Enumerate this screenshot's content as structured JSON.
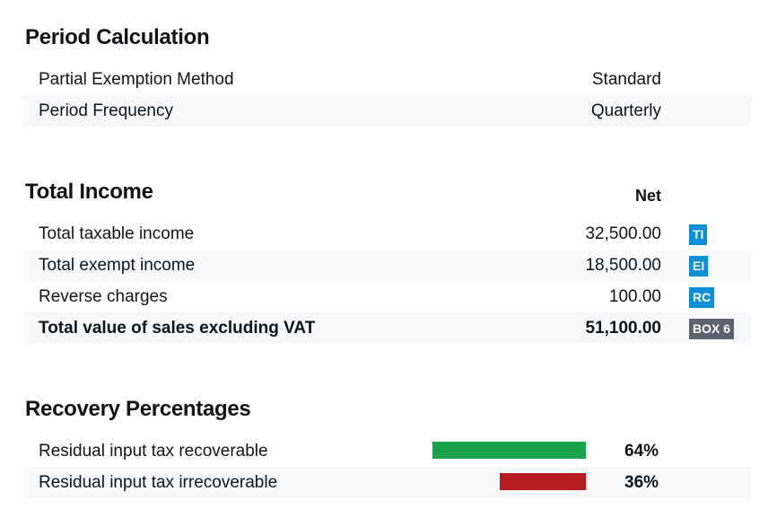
{
  "period_calculation": {
    "title": "Period Calculation",
    "rows": [
      {
        "label": "Partial Exemption Method",
        "value": "Standard"
      },
      {
        "label": "Period Frequency",
        "value": "Quarterly"
      }
    ]
  },
  "total_income": {
    "title": "Total Income",
    "column_header": "Net",
    "rows": [
      {
        "label": "Total taxable income",
        "value": "32,500.00",
        "badge": "TI"
      },
      {
        "label": "Total exempt income",
        "value": "18,500.00",
        "badge": "EI"
      },
      {
        "label": "Reverse charges",
        "value": "100.00",
        "badge": "RC"
      },
      {
        "label": "Total value of sales excluding VAT",
        "value": "51,100.00",
        "badge": "BOX 6"
      }
    ],
    "badge_colors": {
      "default": "#0c8fd9",
      "total": "#5b6373"
    }
  },
  "recovery_percentages": {
    "title": "Recovery Percentages",
    "rows": [
      {
        "label": "Residual input tax recoverable",
        "percent": 64,
        "percent_label": "64%",
        "color": "#1aa34a"
      },
      {
        "label": "Residual input tax irrecoverable",
        "percent": 36,
        "percent_label": "36%",
        "color": "#b71c1e"
      }
    ]
  }
}
